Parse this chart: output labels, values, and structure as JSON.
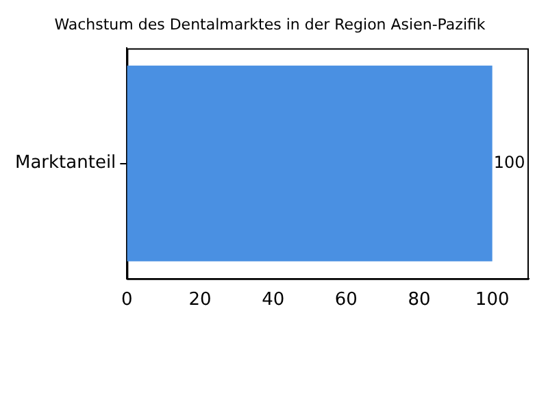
{
  "chart_data": {
    "type": "bar",
    "orientation": "horizontal",
    "title": "Wachstum des Dentalmarktes in der Region Asien-Pazifik",
    "categories": [
      "Marktanteil"
    ],
    "values": [
      100
    ],
    "color": "#4a90e2",
    "xlim": [
      0,
      110
    ],
    "xticks": [
      0,
      20,
      40,
      60,
      80,
      100
    ],
    "grid": false,
    "data_labels": true
  }
}
